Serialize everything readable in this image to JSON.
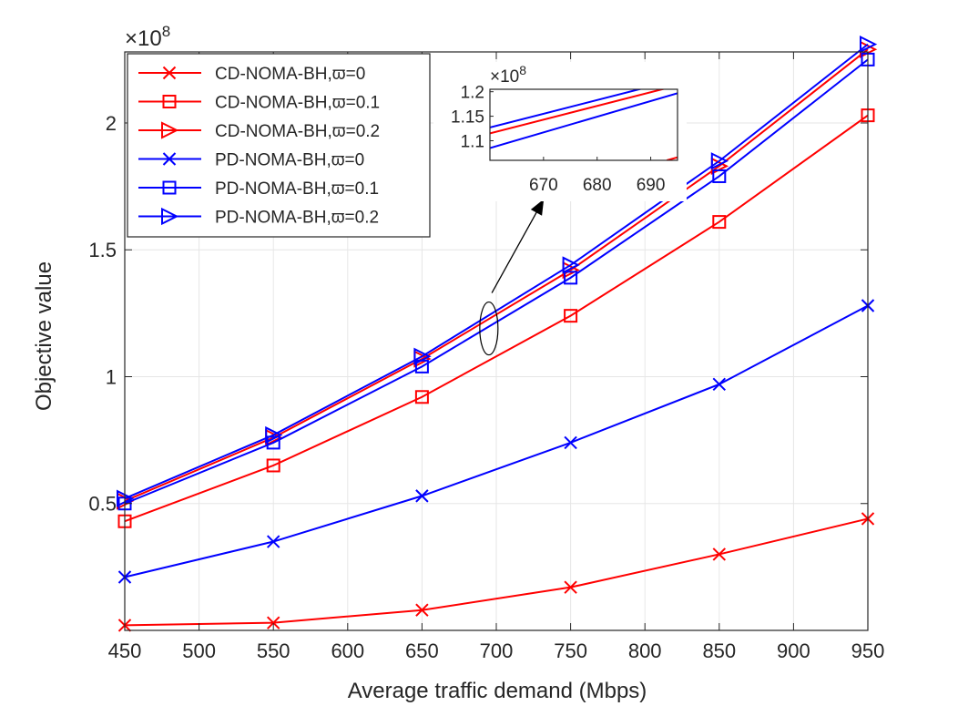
{
  "chart_data": {
    "type": "line",
    "xlabel": "Average traffic demand (Mbps)",
    "ylabel": "Objective value",
    "exponent_label": "×10",
    "exponent_power": "8",
    "x": [
      450,
      550,
      650,
      750,
      850,
      950
    ],
    "xlim": [
      450,
      950
    ],
    "ylim": [
      0.0,
      2.28
    ],
    "x_ticks": [
      "450",
      "500",
      "550",
      "600",
      "650",
      "700",
      "750",
      "800",
      "850",
      "900",
      "950"
    ],
    "y_ticks": [
      {
        "value": 0.5,
        "label": "0.5"
      },
      {
        "value": 1.0,
        "label": "1"
      },
      {
        "value": 1.5,
        "label": "1.5"
      },
      {
        "value": 2.0,
        "label": "2"
      }
    ],
    "grid": true,
    "legend_position": "top-left",
    "series": [
      {
        "name": "CD-NOMA-BH,ϖ=0",
        "color": "#ff0000",
        "marker": "x",
        "values": [
          0.02,
          0.03,
          0.08,
          0.17,
          0.3,
          0.44
        ]
      },
      {
        "name": "CD-NOMA-BH,ϖ=0.1",
        "color": "#ff0000",
        "marker": "square",
        "values": [
          0.43,
          0.65,
          0.92,
          1.24,
          1.61,
          2.03
        ]
      },
      {
        "name": "CD-NOMA-BH,ϖ=0.2",
        "color": "#ff0000",
        "marker": "triangle",
        "values": [
          0.51,
          0.76,
          1.07,
          1.42,
          1.83,
          2.29
        ]
      },
      {
        "name": "PD-NOMA-BH,ϖ=0",
        "color": "#0000ff",
        "marker": "x",
        "values": [
          0.21,
          0.35,
          0.53,
          0.74,
          0.97,
          1.28
        ]
      },
      {
        "name": "PD-NOMA-BH,ϖ=0.1",
        "color": "#0000ff",
        "marker": "square",
        "values": [
          0.5,
          0.74,
          1.04,
          1.39,
          1.79,
          2.25
        ]
      },
      {
        "name": "PD-NOMA-BH,ϖ=0.2",
        "color": "#0000ff",
        "marker": "triangle",
        "values": [
          0.52,
          0.77,
          1.08,
          1.44,
          1.85,
          2.31
        ]
      }
    ],
    "inset": {
      "xlim": [
        660,
        695
      ],
      "ylim": [
        1.06,
        1.205
      ],
      "x_ticks": [
        "670",
        "680",
        "690"
      ],
      "y_ticks": [
        {
          "value": 1.1,
          "label": "1.1"
        },
        {
          "value": 1.15,
          "label": "1.15"
        },
        {
          "value": 1.2,
          "label": "1.2"
        }
      ],
      "exponent_label": "×10",
      "exponent_power": "8",
      "lines": [
        {
          "color": "#ff0000",
          "x": [
            660,
            695
          ],
          "y": [
            1.115,
            1.213
          ]
        },
        {
          "color": "#0000ff",
          "x": [
            660,
            695
          ],
          "y": [
            1.127,
            1.225
          ]
        },
        {
          "color": "#0000ff",
          "x": [
            660,
            695
          ],
          "y": [
            1.085,
            1.197
          ]
        },
        {
          "color": "#ff0000",
          "x": [
            693,
            695
          ],
          "y": [
            1.06,
            1.066
          ]
        }
      ]
    },
    "annotation": {
      "type": "ellipse-arrow",
      "ellipse_center": {
        "x": 695,
        "y": 1.19
      },
      "arrow_from": {
        "x": 697,
        "y": 1.33
      },
      "arrow_to": {
        "x": 732,
        "y": 1.7
      }
    }
  }
}
